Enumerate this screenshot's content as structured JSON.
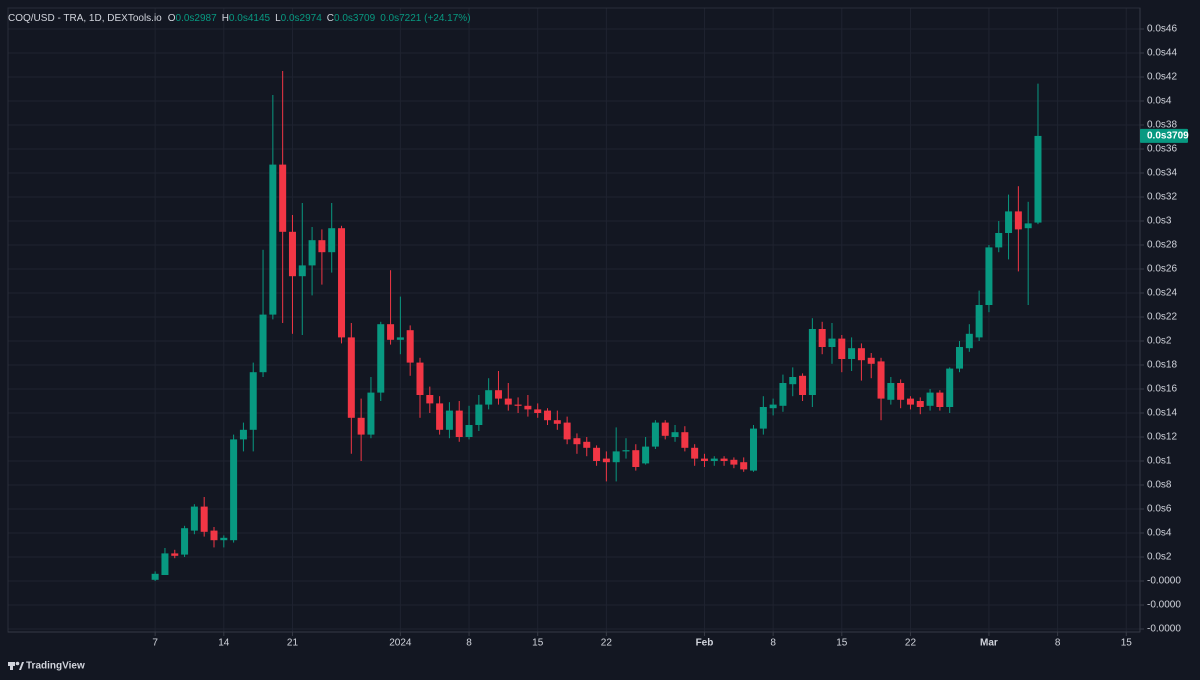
{
  "chart_data": {
    "type": "candlestick",
    "title": "COQ/USD - TRA, 1D, DEXTools.io",
    "ohlc_fields": [
      {
        "label": "O",
        "value": "0.0s2987"
      },
      {
        "label": "H",
        "value": "0.0s4145"
      },
      {
        "label": "L",
        "value": "0.0s2974"
      },
      {
        "label": "C",
        "value": "0.0s3709"
      }
    ],
    "change": "0.0s7221 (+24.17%)",
    "last_price_label": "0.0s3709",
    "up_color": "#089981",
    "down_color": "#f23645",
    "grid": true,
    "open": [
      0.1,
      0.5,
      2.3,
      2.2,
      4.2,
      6.2,
      4.2,
      3.4,
      3.4,
      11.8,
      12.6,
      17.4,
      22.2,
      34.7,
      29.1,
      25.4,
      26.3,
      28.4,
      27.4,
      29.4,
      20.3,
      13.6,
      12.2,
      15.7,
      21.4,
      20.1,
      20.9,
      18.2,
      15.5,
      14.8,
      12.6,
      14.2,
      12.0,
      13.0,
      14.7,
      15.9,
      15.2,
      14.7,
      14.6,
      14.3,
      14.2,
      13.4,
      13.2,
      11.9,
      11.6,
      11.1,
      10.2,
      9.9,
      10.8,
      10.9,
      9.8,
      11.2,
      13.2,
      12.0,
      12.4,
      11.1,
      10.2,
      10.0,
      10.2,
      10.1,
      9.9,
      9.2,
      12.7,
      14.4,
      14.6,
      16.4,
      17.1,
      15.5,
      21.0,
      19.5,
      20.2,
      18.5,
      19.4,
      18.6,
      18.3,
      15.1,
      16.5,
      15.2,
      15.0,
      14.6,
      15.7,
      14.5,
      17.7,
      19.4,
      20.3,
      23.0,
      27.8,
      29.0,
      30.8,
      29.4,
      29.87
    ],
    "high": [
      0.8,
      2.75,
      2.6,
      4.6,
      6.4,
      7.0,
      4.5,
      3.8,
      12.2,
      13.2,
      18.2,
      27.6,
      40.5,
      42.5,
      30.5,
      31.5,
      29.5,
      29.3,
      31.5,
      29.6,
      21.5,
      15.2,
      17.0,
      21.6,
      25.9,
      23.7,
      21.3,
      18.6,
      16.2,
      15.4,
      14.9,
      15.0,
      14.6,
      15.5,
      16.9,
      17.5,
      16.5,
      15.3,
      15.5,
      14.8,
      14.4,
      14.2,
      13.7,
      12.3,
      12.0,
      11.3,
      10.8,
      12.8,
      11.9,
      11.4,
      12.0,
      13.4,
      13.4,
      13.0,
      12.9,
      11.4,
      10.6,
      10.4,
      10.4,
      10.3,
      10.3,
      13.0,
      15.4,
      15.2,
      17.2,
      17.8,
      17.3,
      21.9,
      21.6,
      21.5,
      20.5,
      20.3,
      19.8,
      19.0,
      18.6,
      17.0,
      16.8,
      15.4,
      15.3,
      16.0,
      15.9,
      17.8,
      20.0,
      21.4,
      24.2,
      28.0,
      30.0,
      32.2,
      32.9,
      31.6,
      41.45
    ],
    "low": [
      0.0,
      0.5,
      1.9,
      2.0,
      3.9,
      3.7,
      2.8,
      2.8,
      3.2,
      10.8,
      10.8,
      17.0,
      21.8,
      21.5,
      20.6,
      20.5,
      23.8,
      24.7,
      25.7,
      19.8,
      10.6,
      10.0,
      11.9,
      15.0,
      19.7,
      18.9,
      17.1,
      13.6,
      14.0,
      12.2,
      11.9,
      11.6,
      11.8,
      12.5,
      14.3,
      14.7,
      14.2,
      14.0,
      13.7,
      13.6,
      13.0,
      12.6,
      11.4,
      10.6,
      10.4,
      9.6,
      8.3,
      8.3,
      10.2,
      9.2,
      9.7,
      11.0,
      11.8,
      11.6,
      10.8,
      9.6,
      9.5,
      9.6,
      9.6,
      9.4,
      9.1,
      9.1,
      12.2,
      13.8,
      14.1,
      15.4,
      15.0,
      14.5,
      18.9,
      18.1,
      17.4,
      17.5,
      16.7,
      16.9,
      13.4,
      14.7,
      14.4,
      14.3,
      13.9,
      14.2,
      14.2,
      14.0,
      17.4,
      19.1,
      20.0,
      22.4,
      27.4,
      26.8,
      25.8,
      23.0,
      29.74
    ],
    "close": [
      0.6,
      2.3,
      2.1,
      4.4,
      6.2,
      4.1,
      3.4,
      3.6,
      11.8,
      12.6,
      17.4,
      22.2,
      34.7,
      29.1,
      25.4,
      26.3,
      28.4,
      27.4,
      29.4,
      20.3,
      13.6,
      12.2,
      15.7,
      21.4,
      20.1,
      20.3,
      18.2,
      15.5,
      14.8,
      12.6,
      14.2,
      12.0,
      13.0,
      14.7,
      15.9,
      15.2,
      14.7,
      14.6,
      14.3,
      14.0,
      13.4,
      13.1,
      11.8,
      11.4,
      11.1,
      10.0,
      9.9,
      10.8,
      10.9,
      9.5,
      11.2,
      13.2,
      12.1,
      12.4,
      11.1,
      10.2,
      10.0,
      10.2,
      10.0,
      9.7,
      9.3,
      12.7,
      14.5,
      14.7,
      16.5,
      17.0,
      15.5,
      21.0,
      19.5,
      20.2,
      18.5,
      19.4,
      18.4,
      18.1,
      15.2,
      16.5,
      15.1,
      14.7,
      14.5,
      15.7,
      14.5,
      17.7,
      19.5,
      20.6,
      23.0,
      27.8,
      29.0,
      30.8,
      29.3,
      29.8,
      37.09
    ],
    "xlim": [
      -15,
      100.4
    ],
    "xticks": [
      {
        "value": 0,
        "label": "7"
      },
      {
        "value": 7,
        "label": "14"
      },
      {
        "value": 14,
        "label": "21"
      },
      {
        "value": 25,
        "label": "2024"
      },
      {
        "value": 32,
        "label": "8"
      },
      {
        "value": 39,
        "label": "15"
      },
      {
        "value": 46,
        "label": "22"
      },
      {
        "value": 56,
        "label": "Feb"
      },
      {
        "value": 63,
        "label": "8"
      },
      {
        "value": 70,
        "label": "15"
      },
      {
        "value": 77,
        "label": "22"
      },
      {
        "value": 85,
        "label": "Mar"
      },
      {
        "value": 92,
        "label": "8"
      },
      {
        "value": 99,
        "label": "15"
      }
    ],
    "ylim": [
      -4.25,
      47.75
    ],
    "yticks": [
      {
        "value": 46,
        "label": "0.0s46"
      },
      {
        "value": 44,
        "label": "0.0s44"
      },
      {
        "value": 42,
        "label": "0.0s42"
      },
      {
        "value": 40,
        "label": "0.0s4"
      },
      {
        "value": 38,
        "label": "0.0s38"
      },
      {
        "value": 36,
        "label": "0.0s36"
      },
      {
        "value": 34,
        "label": "0.0s34"
      },
      {
        "value": 32,
        "label": "0.0s32"
      },
      {
        "value": 30,
        "label": "0.0s3"
      },
      {
        "value": 28,
        "label": "0.0s28"
      },
      {
        "value": 26,
        "label": "0.0s26"
      },
      {
        "value": 24,
        "label": "0.0s24"
      },
      {
        "value": 22,
        "label": "0.0s22"
      },
      {
        "value": 20,
        "label": "0.0s2"
      },
      {
        "value": 18,
        "label": "0.0s18"
      },
      {
        "value": 16,
        "label": "0.0s16"
      },
      {
        "value": 14,
        "label": "0.0s14"
      },
      {
        "value": 12,
        "label": "0.0s12"
      },
      {
        "value": 10,
        "label": "0.0s1"
      },
      {
        "value": 8,
        "label": "0.0s8"
      },
      {
        "value": 6,
        "label": "0.0s6"
      },
      {
        "value": 4,
        "label": "0.0s4"
      },
      {
        "value": 2,
        "label": "0.0s2"
      },
      {
        "value": 0,
        "label": "-0.0000"
      },
      {
        "value": -2,
        "label": "-0.0000"
      },
      {
        "value": -4,
        "label": "-0.0000"
      }
    ]
  },
  "watermark": "TradingView"
}
